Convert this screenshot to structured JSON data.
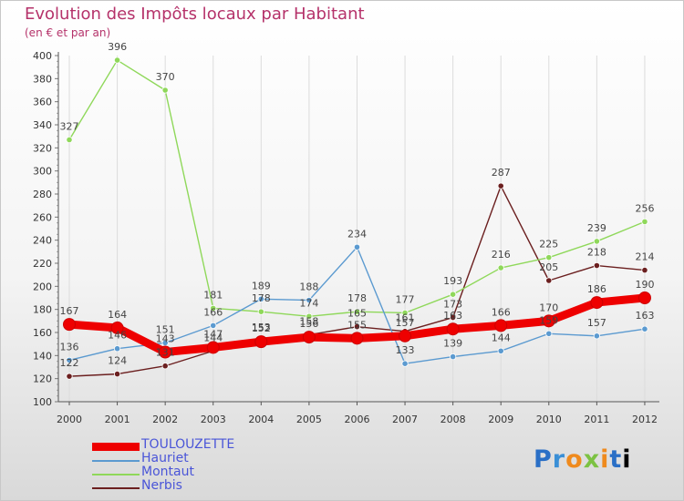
{
  "chart_data": {
    "type": "line",
    "title": "Evolution des Impôts locaux par Habitant",
    "subtitle": "(en € et par an)",
    "xlabel": "",
    "ylabel": "",
    "ylim": [
      100,
      400
    ],
    "yticks": [
      100,
      120,
      140,
      160,
      180,
      200,
      220,
      240,
      260,
      280,
      300,
      320,
      340,
      360,
      380,
      400
    ],
    "categories": [
      "2000",
      "2001",
      "2002",
      "2003",
      "2004",
      "2005",
      "2006",
      "2007",
      "2008",
      "2009",
      "2010",
      "2011",
      "2012"
    ],
    "series": [
      {
        "name": "TOULOUZETTE",
        "color": "#ee0000",
        "values": [
          167,
          164,
          143,
          147,
          152,
          156,
          155,
          157,
          163,
          166,
          170,
          186,
          190
        ]
      },
      {
        "name": "Hauriet",
        "color": "#5b9ad0",
        "values": [
          136,
          146,
          151,
          166,
          189,
          188,
          234,
          133,
          139,
          144,
          159,
          157,
          163
        ]
      },
      {
        "name": "Montaut",
        "color": "#8fd85a",
        "values": [
          327,
          396,
          370,
          181,
          178,
          174,
          178,
          177,
          193,
          216,
          225,
          239,
          256
        ]
      },
      {
        "name": "Nerbis",
        "color": "#6b1f1f",
        "values": [
          122,
          124,
          131,
          144,
          153,
          158,
          165,
          161,
          173,
          287,
          205,
          218,
          214
        ]
      }
    ]
  },
  "legend_labels": [
    "TOULOUZETTE",
    "Hauriet",
    "Montaut",
    "Nerbis"
  ],
  "logo_text": "Proxiti"
}
